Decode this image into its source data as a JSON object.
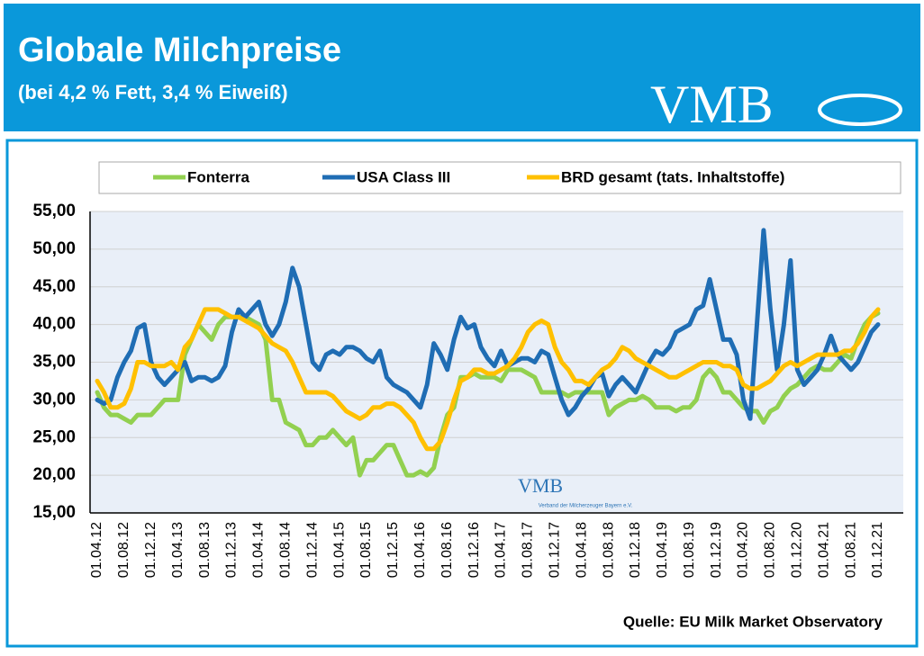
{
  "chart_data": {
    "type": "line",
    "title": "Globale Milchpreise",
    "subtitle": "(bei 4,2 % Fett, 3,4 % Eiweiß)",
    "logo": "VMB",
    "watermark": "VMB",
    "watermark_subtitle": "Verband der Milcherzeuger Bayern e.V.",
    "source": "Quelle:  EU Milk Market Observatory",
    "categories": [
      "01.04.12",
      null,
      null,
      null,
      "01.08.12",
      null,
      null,
      null,
      "01.12.12",
      null,
      null,
      null,
      "01.04.13",
      null,
      null,
      null,
      "01.08.13",
      null,
      null,
      null,
      "01.12.13",
      null,
      null,
      null,
      "01.04.14",
      null,
      null,
      null,
      "01.08.14",
      null,
      null,
      null,
      "01.12.14",
      null,
      null,
      null,
      "01.04.15",
      null,
      null,
      null,
      "01.08.15",
      null,
      null,
      null,
      "01.12.15",
      null,
      null,
      null,
      "01.04.16",
      null,
      null,
      null,
      "01.08.16",
      null,
      null,
      null,
      "01.12.16",
      null,
      null,
      null,
      "01.04.17",
      null,
      null,
      null,
      "01.08.17",
      null,
      null,
      null,
      "01.12.17",
      null,
      null,
      null,
      "01.04.18",
      null,
      null,
      null,
      "01.08.18",
      null,
      null,
      null,
      "01.12.18",
      null,
      null,
      null,
      "01.04.19",
      null,
      null,
      null,
      "01.08.19",
      null,
      null,
      null,
      "01.12.19",
      null,
      null,
      null,
      "01.04.20",
      null,
      null,
      null,
      "01.08.20",
      null,
      null,
      null,
      "01.12.20",
      null,
      null,
      null,
      "01.04.21",
      null,
      null,
      null,
      "01.08.21",
      null,
      null,
      null,
      "01.12.21"
    ],
    "series": [
      {
        "name": "Fonterra",
        "color": "#92d050",
        "values": [
          31,
          29,
          28,
          28,
          27.5,
          27,
          28,
          28,
          28,
          29,
          30,
          30,
          30,
          36,
          38,
          40,
          39,
          38,
          40,
          41,
          41,
          41,
          41,
          40.5,
          40,
          38,
          30,
          30,
          27,
          26.5,
          26,
          24,
          24,
          25,
          25,
          26,
          25,
          24,
          25,
          20,
          22,
          22,
          23,
          24,
          24,
          22,
          20,
          20,
          20.5,
          20,
          21,
          25,
          28,
          29,
          33,
          33,
          33.5,
          33,
          33,
          33,
          32.5,
          34,
          34,
          34,
          33.5,
          33,
          31,
          31,
          31,
          31,
          30.5,
          31,
          31,
          31,
          31,
          31,
          28,
          29,
          29.5,
          30,
          30,
          30.5,
          30,
          29,
          29,
          29,
          28.5,
          29,
          29,
          30,
          33,
          34,
          33,
          31,
          31,
          30,
          29,
          28.5,
          28.5,
          27,
          28.5,
          29,
          30.5,
          31.5,
          32,
          33,
          34,
          34.5,
          34,
          34,
          35,
          36,
          35.5,
          38,
          40,
          41,
          41.5
        ]
      },
      {
        "name": "USA Class III",
        "color": "#1f6db4",
        "values": [
          30,
          29.5,
          30,
          33,
          35,
          36.5,
          39.5,
          40,
          35,
          33,
          32,
          33,
          34,
          35,
          32.5,
          33,
          33,
          32.5,
          33,
          34.5,
          39,
          42,
          41,
          42,
          43,
          40,
          38.5,
          40,
          43,
          47.5,
          45,
          40,
          35,
          34,
          36,
          36.5,
          36,
          37,
          37,
          36.5,
          35.5,
          35,
          36.5,
          33,
          32,
          31.5,
          31,
          30,
          29,
          32,
          37.5,
          36,
          34,
          38,
          41,
          39.5,
          40,
          37,
          35.5,
          34.5,
          36.5,
          34.5,
          35,
          35.5,
          35.5,
          35,
          36.5,
          36,
          33,
          30,
          28,
          29,
          30.5,
          31.5,
          33,
          33.5,
          30.5,
          32,
          33,
          32,
          31,
          33,
          35,
          36.5,
          36,
          37,
          39,
          39.5,
          40,
          42,
          42.5,
          46,
          42,
          38,
          38,
          36,
          30,
          27.5,
          40,
          52.5,
          42,
          34,
          40,
          48.5,
          34,
          32,
          33,
          34,
          36,
          38.5,
          36,
          35,
          34,
          35,
          37,
          39,
          40
        ]
      },
      {
        "name": "BRD gesamt (tats. Inhaltstoffe)",
        "color": "#ffc000",
        "values": [
          32.5,
          31,
          29,
          29,
          29.5,
          31.5,
          35,
          35,
          34.5,
          34.5,
          34.5,
          35,
          34,
          37,
          38,
          40,
          42,
          42,
          42,
          41.5,
          41,
          41,
          40.5,
          40,
          39.5,
          38.5,
          37.5,
          37,
          36.5,
          35,
          33,
          31,
          31,
          31,
          31,
          30.5,
          29.5,
          28.5,
          28,
          27.5,
          28,
          29,
          29,
          29.5,
          29.5,
          29,
          28,
          27,
          25,
          23.5,
          23.5,
          24.5,
          27,
          30,
          32.5,
          33,
          34,
          34,
          33.5,
          33.5,
          34,
          34.5,
          35.5,
          37,
          39,
          40,
          40.5,
          40,
          37,
          35,
          34,
          32.5,
          32.5,
          32,
          33,
          34,
          34.5,
          35.5,
          37,
          36.5,
          35.5,
          35,
          34.5,
          34,
          33.5,
          33,
          33,
          33.5,
          34,
          34.5,
          35,
          35,
          35,
          34.5,
          34.5,
          34,
          32,
          31.5,
          31.5,
          32,
          32.5,
          33.5,
          34.5,
          35,
          34.5,
          35,
          35.5,
          36,
          36,
          36,
          36,
          36.5,
          36.5,
          37.5,
          39,
          41,
          42
        ]
      }
    ],
    "ylim": [
      15,
      55
    ],
    "yticks": [
      {
        "value": 15,
        "label": "15,00"
      },
      {
        "value": 20,
        "label": "20,00"
      },
      {
        "value": 25,
        "label": "25,00"
      },
      {
        "value": 30,
        "label": "30,00"
      },
      {
        "value": 35,
        "label": "35,00"
      },
      {
        "value": 40,
        "label": "40,00"
      },
      {
        "value": 45,
        "label": "45,00"
      },
      {
        "value": 50,
        "label": "50,00"
      },
      {
        "value": 55,
        "label": "55,00"
      }
    ],
    "grid": true
  }
}
